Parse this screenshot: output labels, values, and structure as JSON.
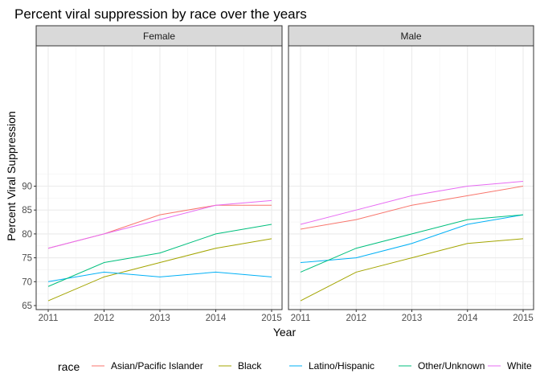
{
  "chart_data": {
    "type": "line",
    "title": "Percent viral suppression by race over the years",
    "xlabel": "Year",
    "ylabel": "Percent Viral Suppression",
    "x": [
      2011,
      2012,
      2013,
      2014,
      2015
    ],
    "xlim": [
      2011,
      2015
    ],
    "ylim": [
      65,
      93
    ],
    "yticks": [
      65,
      70,
      75,
      80,
      85,
      90
    ],
    "grid": true,
    "legend_title": "race",
    "legend_position": "bottom",
    "facets": [
      {
        "label": "Female",
        "series": [
          {
            "name": "Asian/Pacific Islander",
            "values": [
              77,
              80,
              84,
              86,
              86
            ]
          },
          {
            "name": "Black",
            "values": [
              66,
              71,
              74,
              77,
              79
            ]
          },
          {
            "name": "Latino/Hispanic",
            "values": [
              70,
              72,
              71,
              72,
              71
            ]
          },
          {
            "name": "Other/Unknown",
            "values": [
              69,
              74,
              76,
              80,
              82
            ]
          },
          {
            "name": "White",
            "values": [
              77,
              80,
              83,
              86,
              87
            ]
          }
        ]
      },
      {
        "label": "Male",
        "series": [
          {
            "name": "Asian/Pacific Islander",
            "values": [
              81,
              83,
              86,
              88,
              90
            ]
          },
          {
            "name": "Black",
            "values": [
              66,
              72,
              75,
              78,
              79
            ]
          },
          {
            "name": "Latino/Hispanic",
            "values": [
              74,
              75,
              78,
              82,
              84
            ]
          },
          {
            "name": "Other/Unknown",
            "values": [
              72,
              77,
              80,
              83,
              84
            ]
          },
          {
            "name": "White",
            "values": [
              82,
              85,
              88,
              90,
              91
            ]
          }
        ]
      }
    ],
    "colors": {
      "Asian/Pacific Islander": "#F8766D",
      "Black": "#A3A500",
      "Latino/Hispanic": "#00B0F6",
      "Other/Unknown": "#00BF7D",
      "White": "#E76BF3"
    }
  }
}
